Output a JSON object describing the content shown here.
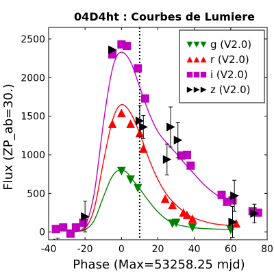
{
  "chart_data": {
    "type": "scatter",
    "title": "04D4ht : Courbes de Lumiere",
    "xlabel": "Phase (Max=53258.25 mjd)",
    "ylabel": "Flux (ZP_ab=30.)",
    "xlim": [
      -40,
      80
    ],
    "ylim": [
      -100,
      2650
    ],
    "xticks": [
      -40,
      -20,
      0,
      20,
      40,
      60,
      80
    ],
    "yticks": [
      0,
      500,
      1000,
      1500,
      2000,
      2500
    ],
    "vline_x": 10,
    "legend_position": "top-right",
    "series": [
      {
        "name": "g (V2.0)",
        "color": "#008000",
        "marker": "triangle-down",
        "points": [
          [
            0,
            790
          ],
          [
            5,
            680
          ],
          [
            9,
            570
          ],
          [
            28,
            110
          ],
          [
            30,
            120
          ],
          [
            39,
            60
          ],
          [
            60,
            30
          ]
        ],
        "errors": [
          0,
          0,
          0,
          0,
          0,
          0,
          0
        ],
        "fit": [
          [
            -26,
            0
          ],
          [
            -20,
            30
          ],
          [
            -15,
            150
          ],
          [
            -10,
            450
          ],
          [
            -6,
            680
          ],
          [
            -3,
            780
          ],
          [
            0,
            800
          ],
          [
            3,
            770
          ],
          [
            6,
            680
          ],
          [
            10,
            560
          ],
          [
            15,
            400
          ],
          [
            20,
            260
          ],
          [
            25,
            160
          ],
          [
            30,
            100
          ],
          [
            40,
            55
          ],
          [
            50,
            40
          ],
          [
            62,
            30
          ]
        ]
      },
      {
        "name": "r (V2.0)",
        "color": "#ff0000",
        "marker": "triangle-up",
        "points": [
          [
            -5,
            1400
          ],
          [
            0,
            1540
          ],
          [
            5,
            1400
          ],
          [
            10,
            1280
          ],
          [
            12,
            1080
          ],
          [
            24,
            430
          ],
          [
            28,
            350
          ],
          [
            34,
            250
          ],
          [
            36,
            220
          ],
          [
            39,
            170
          ],
          [
            63,
            110
          ]
        ],
        "errors": [
          0,
          0,
          0,
          0,
          0,
          0,
          0,
          0,
          0,
          0,
          0
        ],
        "fit": [
          [
            -26,
            0
          ],
          [
            -20,
            50
          ],
          [
            -15,
            300
          ],
          [
            -10,
            900
          ],
          [
            -6,
            1350
          ],
          [
            -3,
            1570
          ],
          [
            0,
            1650
          ],
          [
            3,
            1610
          ],
          [
            6,
            1500
          ],
          [
            10,
            1280
          ],
          [
            15,
            950
          ],
          [
            20,
            680
          ],
          [
            25,
            480
          ],
          [
            30,
            350
          ],
          [
            35,
            250
          ],
          [
            40,
            180
          ],
          [
            50,
            110
          ],
          [
            62,
            80
          ]
        ]
      },
      {
        "name": "i (V2.0)",
        "color": "#bf00bf",
        "marker": "square",
        "points": [
          [
            -36,
            40
          ],
          [
            -32,
            60
          ],
          [
            -28,
            -20
          ],
          [
            -25,
            60
          ],
          [
            -21,
            120
          ],
          [
            -5,
            2300
          ],
          [
            0,
            2430
          ],
          [
            3,
            2410
          ],
          [
            9,
            2120
          ],
          [
            13,
            1730
          ],
          [
            33,
            990
          ],
          [
            36,
            1000
          ],
          [
            38,
            860
          ],
          [
            55,
            480
          ],
          [
            58,
            390
          ],
          [
            61,
            410
          ],
          [
            72,
            270
          ],
          [
            75,
            250
          ]
        ],
        "errors": [
          0,
          0,
          0,
          0,
          0,
          0,
          0,
          0,
          0,
          0,
          0,
          0,
          0,
          0,
          0,
          0,
          0,
          0
        ],
        "fit": [
          [
            -26,
            0
          ],
          [
            -20,
            80
          ],
          [
            -15,
            500
          ],
          [
            -10,
            1400
          ],
          [
            -6,
            2000
          ],
          [
            -3,
            2260
          ],
          [
            0,
            2330
          ],
          [
            3,
            2280
          ],
          [
            6,
            2150
          ],
          [
            10,
            1880
          ],
          [
            15,
            1550
          ],
          [
            20,
            1300
          ],
          [
            25,
            1150
          ],
          [
            30,
            1020
          ],
          [
            35,
            880
          ],
          [
            40,
            750
          ],
          [
            45,
            620
          ],
          [
            50,
            520
          ],
          [
            55,
            440
          ],
          [
            62,
            380
          ]
        ]
      },
      {
        "name": "z (V2.0)",
        "color": "#000000",
        "marker": "triangle-right",
        "points": [
          [
            -5,
            2360
          ],
          [
            -35,
            -140
          ],
          [
            -20,
            200
          ],
          [
            10,
            1440
          ],
          [
            12,
            1360
          ],
          [
            25,
            940
          ],
          [
            27,
            1360
          ],
          [
            31,
            1190
          ],
          [
            62,
            470
          ],
          [
            61,
            130
          ],
          [
            73,
            240
          ]
        ],
        "errors": [
          0,
          60,
          200,
          200,
          150,
          200,
          260,
          230,
          200,
          200,
          120
        ],
        "fit": []
      }
    ]
  }
}
